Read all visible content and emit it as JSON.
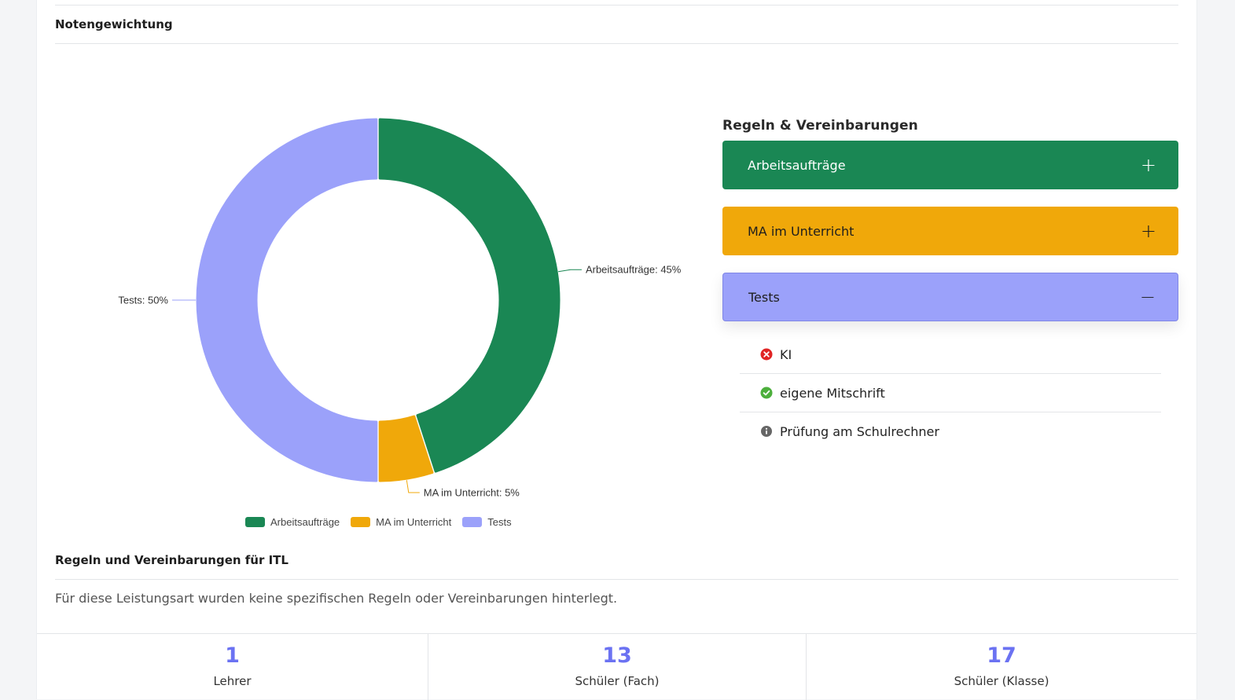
{
  "weighting": {
    "title": "Notengewichtung"
  },
  "chart_data": {
    "type": "pie",
    "categories": [
      "Arbeitsaufträge",
      "MA im Unterricht",
      "Tests"
    ],
    "values": [
      45,
      5,
      50
    ],
    "colors": [
      "#1a8754",
      "#f0a80a",
      "#9ba1fa"
    ],
    "data_labels": [
      "Arbeitsaufträge: 45%",
      "MA im Unterricht: 5%",
      "Tests: 50%"
    ],
    "legend": [
      "Arbeitsaufträge",
      "MA im Unterricht",
      "Tests"
    ],
    "legend_position": "bottom",
    "donut": true
  },
  "rules": {
    "title": "Regeln & Vereinbarungen",
    "accordions": [
      {
        "label": "Arbeitsaufträge",
        "sign": "+"
      },
      {
        "label": "MA im Unterricht",
        "sign": "+"
      },
      {
        "label": "Tests",
        "sign": "−"
      }
    ],
    "items": [
      {
        "icon": "x-circle-icon",
        "label": "KI",
        "color": "#e02424"
      },
      {
        "icon": "check-circle-icon",
        "label": "eigene Mitschrift",
        "color": "#4caf3c"
      },
      {
        "icon": "info-circle-icon",
        "label": "Prüfung am Schulrechner",
        "color": "#666666"
      }
    ]
  },
  "itl": {
    "title": "Regeln und Vereinbarungen für ITL",
    "text": "Für diese Leistungsart wurden keine spezifischen Regeln oder Vereinbarungen hinterlegt."
  },
  "stats": [
    {
      "value": "1",
      "label": "Lehrer"
    },
    {
      "value": "13",
      "label": "Schüler (Fach)"
    },
    {
      "value": "17",
      "label": "Schüler (Klasse)"
    }
  ]
}
